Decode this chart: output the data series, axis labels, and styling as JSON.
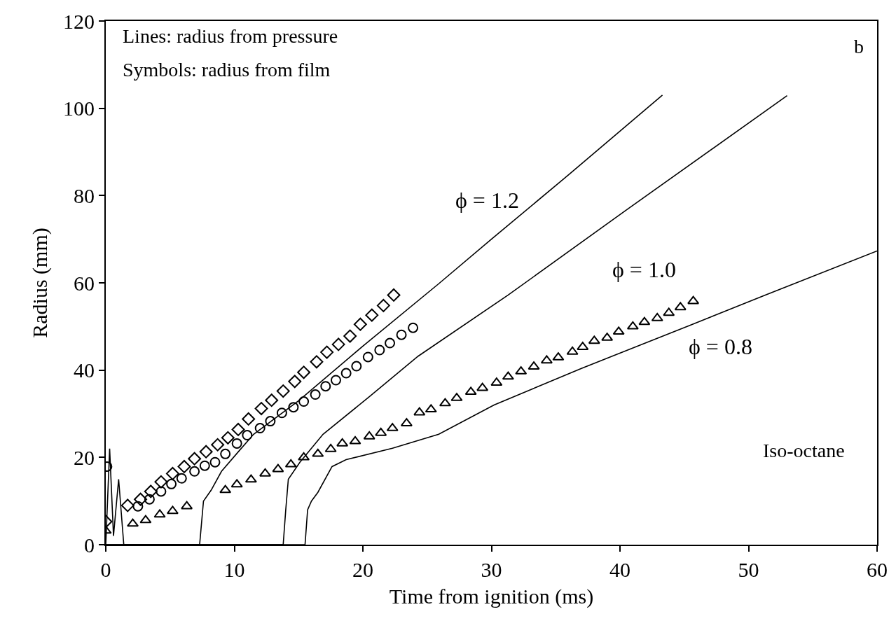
{
  "chart_data": {
    "type": "line",
    "xlabel": "Time from ignition (ms)",
    "ylabel": "Radius (mm)",
    "xlim": [
      0,
      60
    ],
    "xticks": [
      0,
      10,
      20,
      30,
      40,
      50,
      60
    ],
    "ylim": [
      0,
      120
    ],
    "yticks": [
      0,
      20,
      40,
      60,
      80,
      100,
      120
    ],
    "annotations": [
      "Lines: radius from pressure",
      "Symbols: radius from film",
      "b",
      "Iso-octane",
      "ϕ = 1.2",
      "ϕ = 1.0",
      "ϕ = 0.8"
    ],
    "series": [
      {
        "color": "#000000",
        "marker": "none",
        "x": [
          0,
          0.3,
          0.6,
          1.0,
          1.4,
          7.3,
          7.6,
          8.2,
          9.0,
          10.4,
          11.5,
          15,
          20,
          25.9,
          30,
          36.1,
          43.3
        ],
        "values": [
          0,
          22,
          2,
          15,
          0,
          0,
          10,
          12.5,
          16.8,
          21.6,
          25.3,
          33,
          45.5,
          59.8,
          70,
          85,
          103
        ]
      },
      {
        "color": "#000000",
        "marker": "none",
        "x": [
          0,
          13.8,
          14.0,
          14.2,
          15.1,
          16.9,
          20.5,
          24.3,
          31.3,
          40.5,
          53.0
        ],
        "values": [
          0,
          0,
          8,
          15,
          18.9,
          25.3,
          33.9,
          43.2,
          57.2,
          76.7,
          102.9
        ]
      },
      {
        "color": "#000000",
        "marker": "none",
        "x": [
          0,
          15.5,
          15.7,
          16.0,
          16.5,
          17.6,
          18.7,
          22.3,
          25.9,
          30.2,
          37,
          45.4,
          51.3,
          60
        ],
        "values": [
          0,
          0,
          8,
          10,
          12,
          17.9,
          19.5,
          22.1,
          25.3,
          32,
          40.4,
          50.2,
          57.2,
          67.3
        ]
      },
      {
        "type": "scatter",
        "color": "#000000",
        "marker": "diamond",
        "x": [
          0,
          1.7,
          2.7,
          3.5,
          4.3,
          5.2,
          6.1,
          6.9,
          7.8,
          8.7,
          9.5,
          10.3,
          11.1,
          12.1,
          12.9,
          13.8,
          14.7,
          15.4,
          16.4,
          17.2,
          18.1,
          19.0,
          19.8,
          20.7,
          21.6,
          22.4
        ],
        "values": [
          5.3,
          9.0,
          10.4,
          12.2,
          14.4,
          16.3,
          17.9,
          19.7,
          21.3,
          22.9,
          24.5,
          26.4,
          28.8,
          31.2,
          33.1,
          35.2,
          37.4,
          39.5,
          41.9,
          44.1,
          45.9,
          47.8,
          50.5,
          52.6,
          54.8,
          57.2
        ]
      },
      {
        "type": "scatter",
        "color": "#000000",
        "marker": "circle",
        "x": [
          0.1,
          2.5,
          3.4,
          4.3,
          5.1,
          5.9,
          6.9,
          7.7,
          8.5,
          9.3,
          10.2,
          11.0,
          12.0,
          12.8,
          13.7,
          14.6,
          15.4,
          16.3,
          17.1,
          17.9,
          18.7,
          19.5,
          20.4,
          21.3,
          22.1,
          23.0,
          23.9
        ],
        "values": [
          17.9,
          8.8,
          10.4,
          12.2,
          13.9,
          15.2,
          16.8,
          18.1,
          18.9,
          20.8,
          23.2,
          25.1,
          26.7,
          28.3,
          30.2,
          31.5,
          32.8,
          34.4,
          36.3,
          37.7,
          39.3,
          40.9,
          43.0,
          44.6,
          46.2,
          48.1,
          49.7
        ]
      },
      {
        "type": "scatter",
        "color": "#000000",
        "marker": "triangle",
        "x": [
          0,
          2.1,
          3.1,
          4.2,
          5.2,
          6.3,
          9.3,
          10.2,
          11.3,
          12.4,
          13.4,
          14.4,
          15.4,
          16.5,
          17.5,
          18.4,
          19.4,
          20.5,
          21.4,
          22.3,
          23.4,
          24.4,
          25.3,
          26.4,
          27.3,
          28.4,
          29.3,
          30.4,
          31.3,
          32.3,
          33.3,
          34.3,
          35.2,
          36.3,
          37.1,
          38.0,
          39.0,
          39.9,
          41.0,
          41.9,
          42.9,
          43.8,
          44.7,
          45.7
        ],
        "values": [
          3.2,
          4.8,
          5.6,
          6.9,
          7.7,
          8.8,
          12.5,
          13.8,
          14.9,
          16.3,
          17.3,
          18.4,
          20.0,
          20.8,
          21.9,
          23.2,
          23.7,
          24.8,
          25.6,
          26.7,
          27.8,
          30.3,
          31.0,
          32.4,
          33.6,
          35.0,
          35.9,
          37.1,
          38.5,
          39.7,
          40.8,
          42.2,
          42.9,
          44.2,
          45.3,
          46.7,
          47.4,
          48.8,
          50.0,
          51.0,
          51.9,
          53.1,
          54.4,
          55.8
        ]
      }
    ]
  }
}
